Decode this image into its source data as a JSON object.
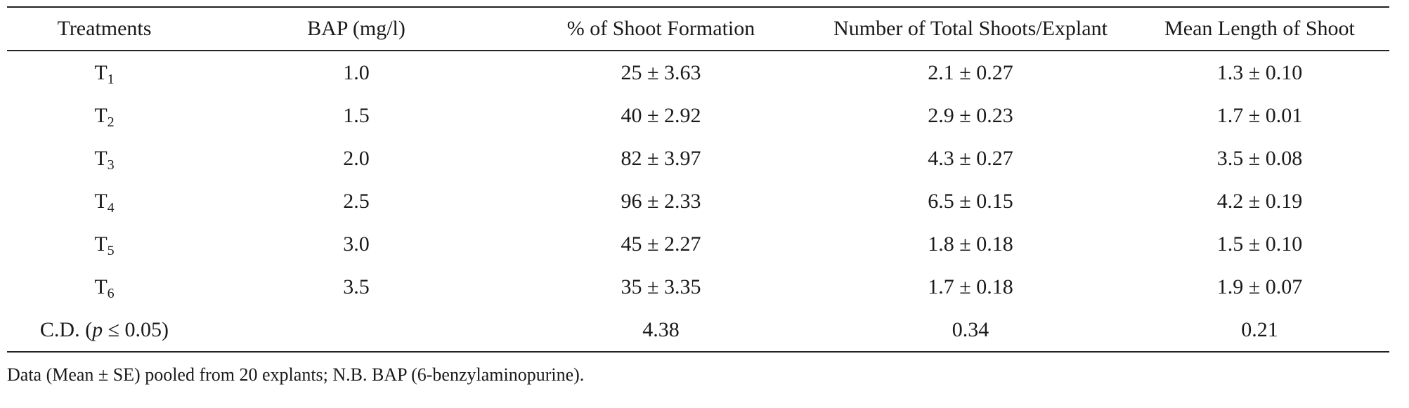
{
  "table": {
    "headers": [
      "Treatments",
      "BAP (mg/l)",
      "% of Shoot Formation",
      "Number of Total Shoots/Explant",
      "Mean Length of Shoot"
    ],
    "rows": [
      {
        "treatment": "T",
        "sub": "1",
        "bap": "1.0",
        "shoot_formation": "25 ± 3.63",
        "total_shoots": "2.1 ± 0.27",
        "mean_length": "1.3 ± 0.10"
      },
      {
        "treatment": "T",
        "sub": "2",
        "bap": "1.5",
        "shoot_formation": "40 ± 2.92",
        "total_shoots": "2.9 ± 0.23",
        "mean_length": "1.7 ± 0.01"
      },
      {
        "treatment": "T",
        "sub": "3",
        "bap": "2.0",
        "shoot_formation": "82 ± 3.97",
        "total_shoots": "4.3 ± 0.27",
        "mean_length": "3.5 ± 0.08"
      },
      {
        "treatment": "T",
        "sub": "4",
        "bap": "2.5",
        "shoot_formation": "96 ± 2.33",
        "total_shoots": "6.5 ± 0.15",
        "mean_length": "4.2 ± 0.19"
      },
      {
        "treatment": "T",
        "sub": "5",
        "bap": "3.0",
        "shoot_formation": "45 ± 2.27",
        "total_shoots": "1.8 ± 0.18",
        "mean_length": "1.5 ± 0.10"
      },
      {
        "treatment": "T",
        "sub": "6",
        "bap": "3.5",
        "shoot_formation": "35 ± 3.35",
        "total_shoots": "1.7 ± 0.18",
        "mean_length": "1.9 ± 0.07"
      }
    ],
    "cd_row": {
      "label_prefix": "C.D. (",
      "label_p": "p",
      "label_suffix": " ≤ 0.05)",
      "bap": "",
      "shoot_formation": "4.38",
      "total_shoots": "0.34",
      "mean_length": "0.21"
    }
  },
  "footnote": "Data (Mean ± SE) pooled from 20 explants; N.B. BAP (6-benzylaminopurine)."
}
